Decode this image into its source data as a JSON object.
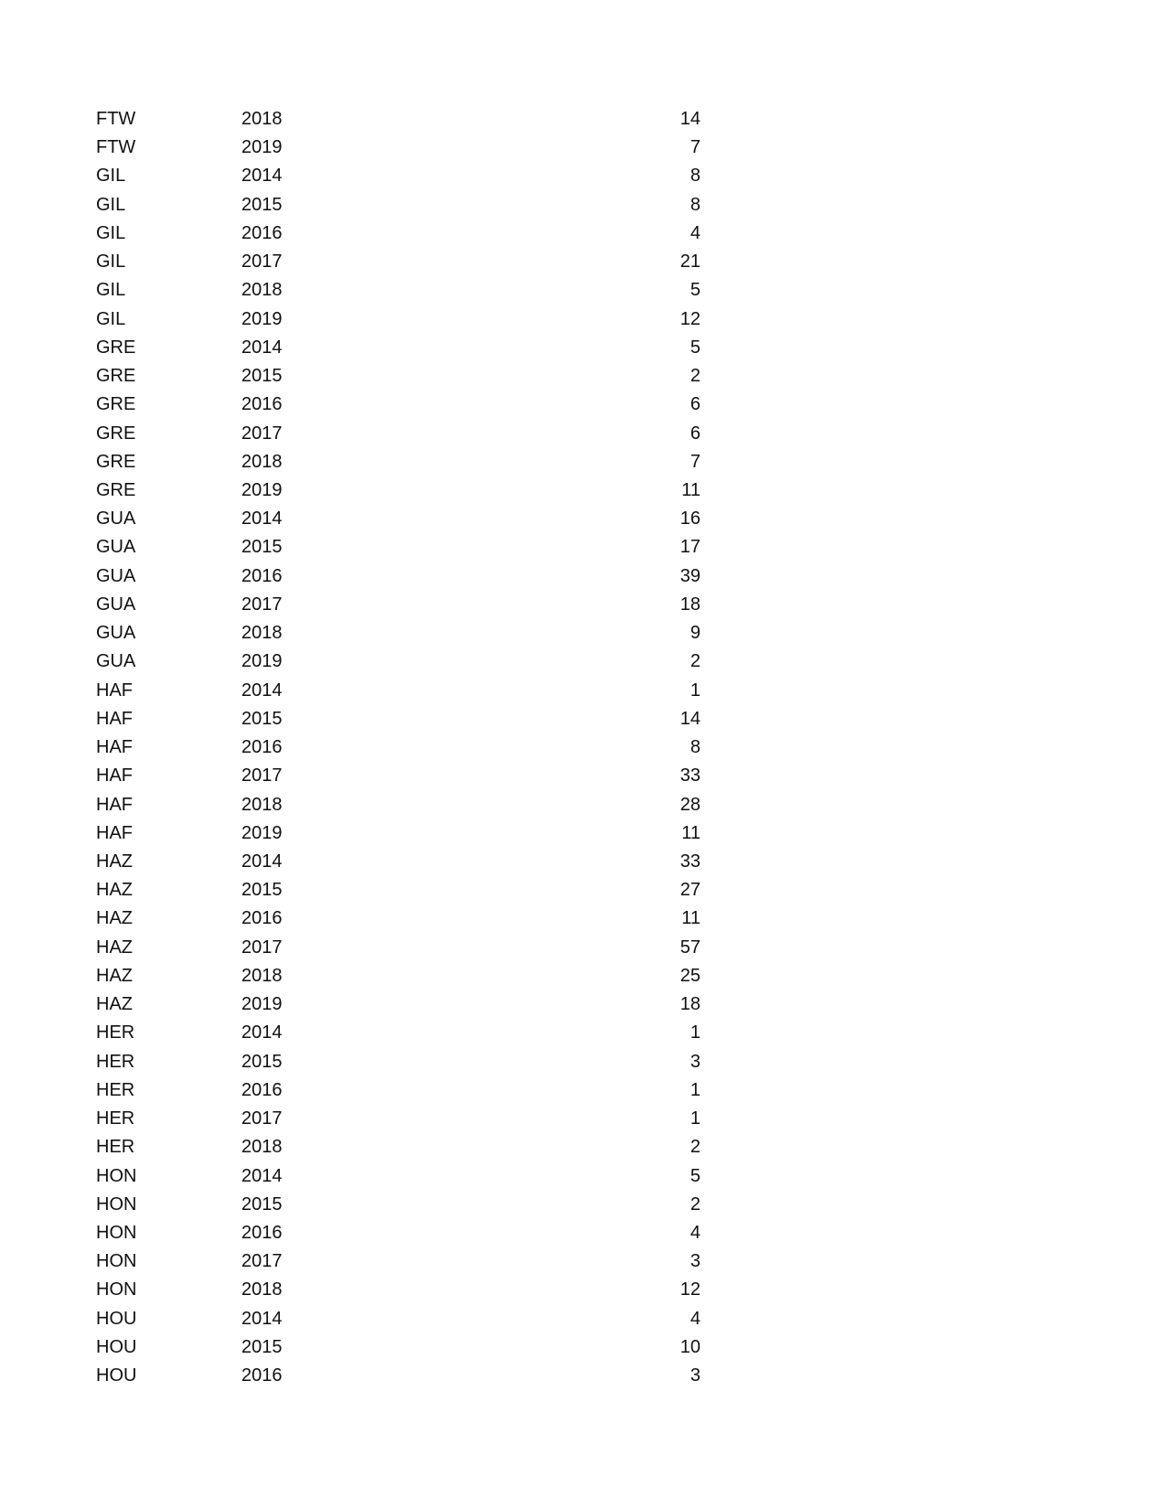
{
  "table": {
    "rows": [
      [
        "FTW",
        2018,
        14
      ],
      [
        "FTW",
        2019,
        7
      ],
      [
        "GIL",
        2014,
        8
      ],
      [
        "GIL",
        2015,
        8
      ],
      [
        "GIL",
        2016,
        4
      ],
      [
        "GIL",
        2017,
        21
      ],
      [
        "GIL",
        2018,
        5
      ],
      [
        "GIL",
        2019,
        12
      ],
      [
        "GRE",
        2014,
        5
      ],
      [
        "GRE",
        2015,
        2
      ],
      [
        "GRE",
        2016,
        6
      ],
      [
        "GRE",
        2017,
        6
      ],
      [
        "GRE",
        2018,
        7
      ],
      [
        "GRE",
        2019,
        11
      ],
      [
        "GUA",
        2014,
        16
      ],
      [
        "GUA",
        2015,
        17
      ],
      [
        "GUA",
        2016,
        39
      ],
      [
        "GUA",
        2017,
        18
      ],
      [
        "GUA",
        2018,
        9
      ],
      [
        "GUA",
        2019,
        2
      ],
      [
        "HAF",
        2014,
        1
      ],
      [
        "HAF",
        2015,
        14
      ],
      [
        "HAF",
        2016,
        8
      ],
      [
        "HAF",
        2017,
        33
      ],
      [
        "HAF",
        2018,
        28
      ],
      [
        "HAF",
        2019,
        11
      ],
      [
        "HAZ",
        2014,
        33
      ],
      [
        "HAZ",
        2015,
        27
      ],
      [
        "HAZ",
        2016,
        11
      ],
      [
        "HAZ",
        2017,
        57
      ],
      [
        "HAZ",
        2018,
        25
      ],
      [
        "HAZ",
        2019,
        18
      ],
      [
        "HER",
        2014,
        1
      ],
      [
        "HER",
        2015,
        3
      ],
      [
        "HER",
        2016,
        1
      ],
      [
        "HER",
        2017,
        1
      ],
      [
        "HER",
        2018,
        2
      ],
      [
        "HON",
        2014,
        5
      ],
      [
        "HON",
        2015,
        2
      ],
      [
        "HON",
        2016,
        4
      ],
      [
        "HON",
        2017,
        3
      ],
      [
        "HON",
        2018,
        12
      ],
      [
        "HOU",
        2014,
        4
      ],
      [
        "HOU",
        2015,
        10
      ],
      [
        "HOU",
        2016,
        3
      ]
    ]
  }
}
